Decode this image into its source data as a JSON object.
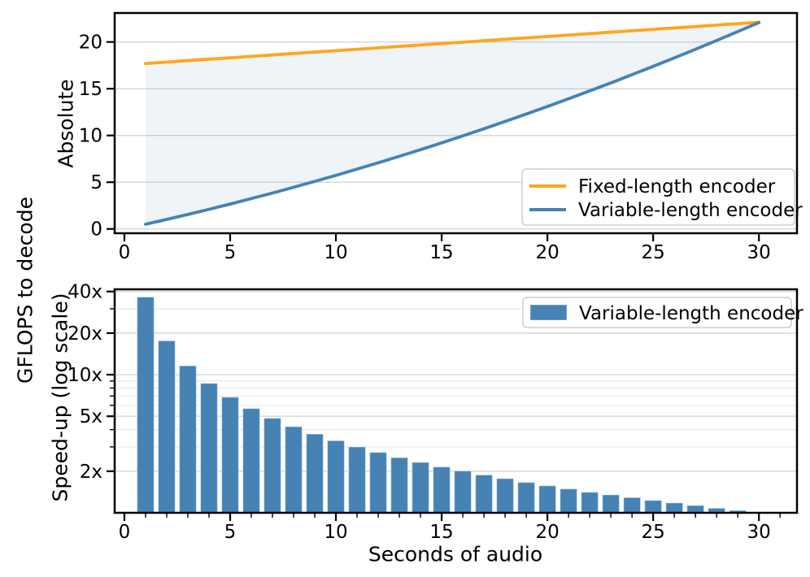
{
  "figure": {
    "ylabel": "GFLOPS to decode",
    "background": "#ffffff"
  },
  "colors": {
    "fixed_line": "#ffa51e",
    "variable_line": "#4682b4",
    "bar": "#4682b4",
    "fill_between": "#4682b4",
    "grid_major": "#d6d6d6",
    "grid_minor": "#e7e7e7",
    "spine": "#000000",
    "legend_border": "#cfcfcf",
    "text": "#000000"
  },
  "chart_data": [
    {
      "type": "line",
      "title": "",
      "xlabel": "",
      "ylabel": "Absolute",
      "x": [
        1,
        2,
        3,
        4,
        5,
        6,
        7,
        8,
        9,
        10,
        11,
        12,
        13,
        14,
        15,
        16,
        17,
        18,
        19,
        20,
        21,
        22,
        23,
        24,
        25,
        26,
        27,
        28,
        29,
        30
      ],
      "series": [
        {
          "name": "Fixed-length encoder",
          "color": "#ffa51e",
          "values": [
            17.7,
            17.85,
            18.01,
            18.16,
            18.31,
            18.46,
            18.61,
            18.77,
            18.92,
            19.07,
            19.22,
            19.37,
            19.53,
            19.68,
            19.83,
            19.98,
            20.13,
            20.29,
            20.44,
            20.59,
            20.74,
            20.89,
            21.05,
            21.2,
            21.35,
            21.5,
            21.65,
            21.81,
            21.96,
            22.11
          ]
        },
        {
          "name": "Variable-length encoder",
          "color": "#4682b4",
          "values": [
            0.5,
            1.02,
            1.55,
            2.1,
            2.66,
            3.25,
            3.84,
            4.46,
            5.09,
            5.73,
            6.4,
            7.08,
            7.77,
            8.48,
            9.21,
            9.96,
            10.72,
            11.5,
            12.29,
            13.1,
            13.92,
            14.77,
            15.62,
            16.5,
            17.39,
            18.3,
            19.22,
            20.16,
            21.11,
            22.08
          ]
        }
      ],
      "fill_between": {
        "between": [
          "Fixed-length encoder",
          "Variable-length encoder"
        ],
        "opacity": 0.09
      },
      "xlim": [
        -0.46,
        31.8
      ],
      "ylim": [
        -0.46,
        23.1
      ],
      "xticks": [
        0,
        5,
        10,
        15,
        20,
        25,
        30
      ],
      "yticks": [
        0,
        5,
        10,
        15,
        20
      ],
      "grid": "horizontal-major",
      "legend_position": "lower right"
    },
    {
      "type": "bar",
      "title": "",
      "xlabel": "Seconds of audio",
      "ylabel": "Speed-up (log scale)",
      "yscale": "log",
      "x": [
        1,
        2,
        3,
        4,
        5,
        6,
        7,
        8,
        9,
        10,
        11,
        12,
        13,
        14,
        15,
        16,
        17,
        18,
        19,
        20,
        21,
        22,
        23,
        24,
        25,
        26,
        27,
        28,
        29,
        30
      ],
      "series": [
        {
          "name": "Variable-length encoder",
          "color": "#4682b4",
          "values": [
            36.5,
            17.6,
            11.6,
            8.66,
            6.88,
            5.69,
            4.84,
            4.21,
            3.72,
            3.33,
            3.0,
            2.74,
            2.51,
            2.32,
            2.15,
            2.01,
            1.88,
            1.77,
            1.66,
            1.57,
            1.49,
            1.41,
            1.35,
            1.29,
            1.23,
            1.18,
            1.13,
            1.08,
            1.04,
            1.0
          ]
        }
      ],
      "bar_width": 0.8,
      "xlim": [
        -0.46,
        31.8
      ],
      "ylim": [
        1.0,
        41.5
      ],
      "xticks": [
        0,
        5,
        10,
        15,
        20,
        25,
        30
      ],
      "yticks": [
        2,
        5,
        10,
        20,
        40
      ],
      "ytick_labels": [
        "2x",
        "5x",
        "10x",
        "20x",
        "40x"
      ],
      "yticks_minor": [
        3,
        4,
        6,
        7,
        8,
        9,
        30
      ],
      "grid": "horizontal-major-minor",
      "legend_position": "upper right"
    }
  ]
}
